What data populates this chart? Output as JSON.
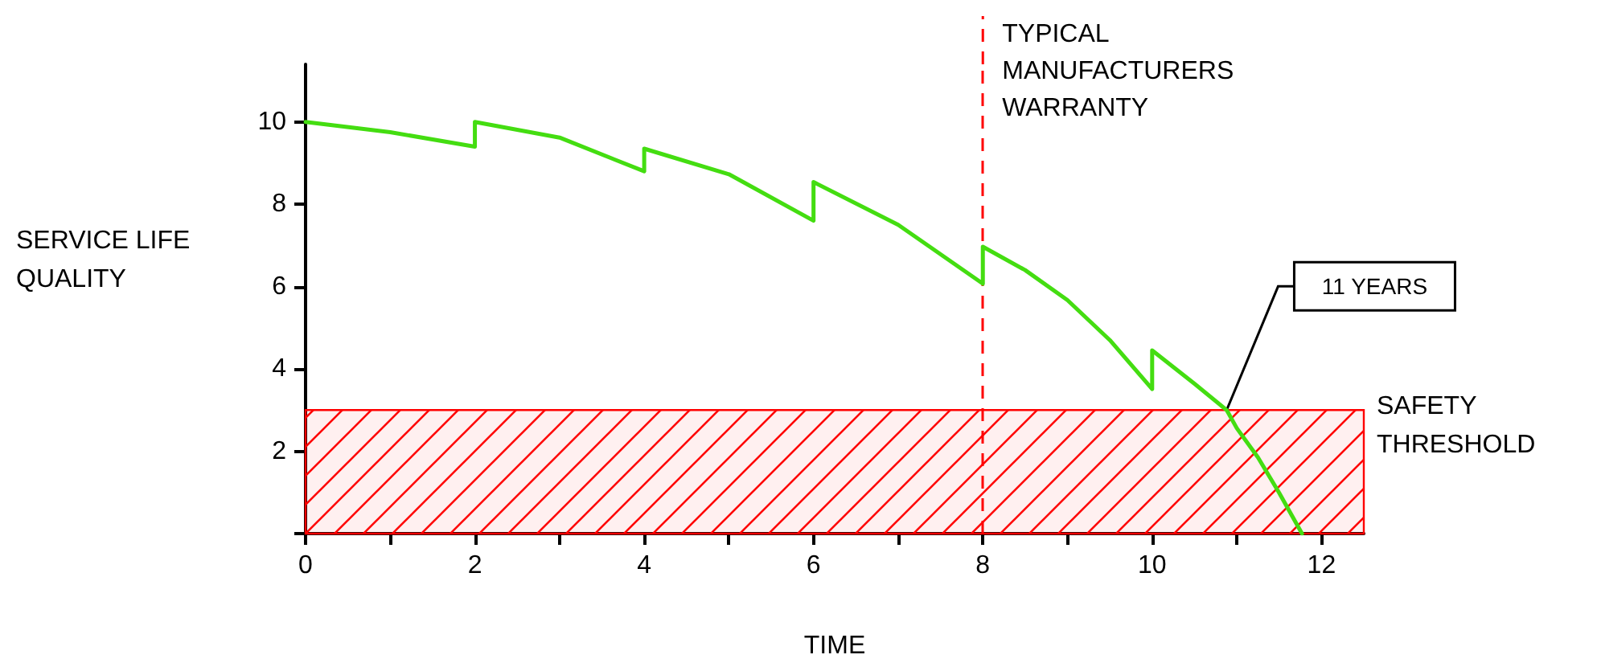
{
  "chart_data": {
    "type": "line",
    "xlabel": "TIME",
    "ylabel": "SERVICE LIFE QUALITY",
    "series": [
      {
        "color": "#44dd11",
        "x": [
          0,
          1,
          2,
          2,
          3,
          4,
          4,
          5,
          6,
          6,
          7,
          8,
          8,
          8.5,
          9,
          9.5,
          10,
          10,
          10.5,
          10.88,
          11,
          11.25,
          11.5,
          11.77
        ],
        "values": [
          10,
          9.75,
          9.4,
          10,
          9.62,
          8.8,
          9.35,
          8.73,
          7.6,
          8.54,
          7.5,
          6.07,
          6.97,
          6.4,
          5.67,
          4.7,
          3.51,
          4.45,
          3.64,
          3,
          2.56,
          1.85,
          0.99,
          0
        ]
      }
    ],
    "xlim": [
      0,
      12.5
    ],
    "ylim": [
      0,
      11.4
    ],
    "xticks": [
      0,
      {
        "value": 1,
        "label": null
      },
      2,
      {
        "value": 3,
        "label": null
      },
      4,
      {
        "value": 5,
        "label": null
      },
      6,
      {
        "value": 7,
        "label": null
      },
      8,
      {
        "value": 9,
        "label": null
      },
      10,
      {
        "value": 11,
        "label": null
      },
      12
    ],
    "yticks": [
      {
        "value": 0,
        "label": null
      },
      2,
      4,
      6,
      8,
      10
    ],
    "ref_lines": [
      {
        "axis": "x",
        "value": 8,
        "label": "TYPICAL MANUFACTURERS WARRANTY",
        "color": "#ff0000",
        "line_style": "dashed"
      }
    ],
    "bands": [
      {
        "axis": "y",
        "from": 0,
        "to": 3,
        "label": "SAFETY THRESHOLD",
        "color": "#ff0000"
      }
    ],
    "annotations": [
      {
        "text": "11 YEARS",
        "x": 10.88,
        "y": 3
      }
    ],
    "grid": false,
    "marker": "none",
    "line_style": "solid"
  }
}
